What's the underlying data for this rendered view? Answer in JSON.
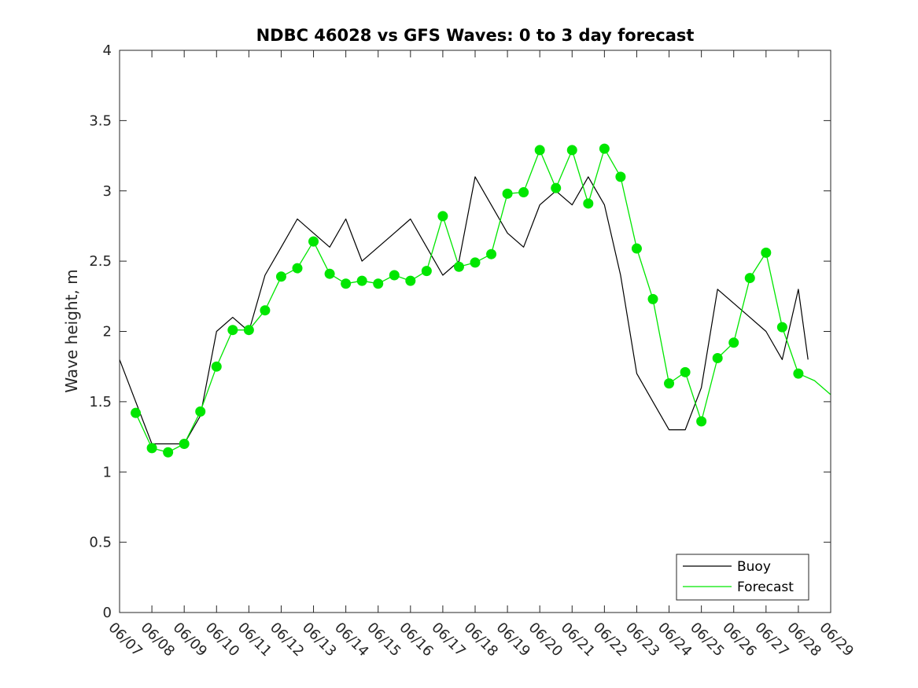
{
  "chart_data": {
    "type": "line",
    "title": "NDBC 46028 vs GFS Waves: 0 to 3 day forecast",
    "ylabel": "Wave height, m",
    "xlabel": "",
    "ylim": [
      0,
      4
    ],
    "yticks": [
      "0",
      "0.5",
      "1",
      "1.5",
      "2",
      "2.5",
      "3",
      "3.5",
      "4"
    ],
    "xlim_days": [
      0,
      22
    ],
    "xtick_labels": [
      "06/07",
      "06/08",
      "06/09",
      "06/10",
      "06/11",
      "06/12",
      "06/13",
      "06/14",
      "06/15",
      "06/16",
      "06/17",
      "06/18",
      "06/19",
      "06/20",
      "06/21",
      "06/22",
      "06/23",
      "06/24",
      "06/25",
      "06/26",
      "06/27",
      "06/28",
      "06/29"
    ],
    "grid": false,
    "legend": {
      "location": "bottom-right",
      "entries": [
        {
          "label": "Buoy",
          "color": "#000000"
        },
        {
          "label": "Forecast",
          "color": "#00e600"
        }
      ]
    },
    "series": [
      {
        "name": "Buoy",
        "color": "#000000",
        "x": [
          0,
          0.5,
          1,
          1.5,
          2,
          2.5,
          3,
          3.5,
          4,
          4.5,
          5,
          5.5,
          6,
          6.5,
          7,
          7.5,
          8,
          8.5,
          9,
          9.5,
          10,
          10.5,
          11,
          11.5,
          12,
          12.5,
          13,
          13.5,
          14,
          14.5,
          15,
          15.5,
          16,
          16.5,
          17,
          17.5,
          18,
          18.5,
          19,
          19.5,
          20,
          20.5,
          21,
          21.3
        ],
        "y": [
          1.8,
          1.5,
          1.2,
          1.2,
          1.2,
          1.4,
          2.0,
          2.1,
          2.0,
          2.4,
          2.6,
          2.8,
          2.7,
          2.6,
          2.8,
          2.5,
          2.6,
          2.7,
          2.8,
          2.6,
          2.4,
          2.5,
          3.1,
          2.9,
          2.7,
          2.6,
          2.9,
          3.0,
          2.9,
          3.1,
          2.9,
          2.4,
          1.7,
          1.5,
          1.3,
          1.3,
          1.6,
          2.3,
          2.2,
          2.1,
          2.0,
          1.8,
          2.3,
          1.8
        ]
      },
      {
        "name": "Forecast",
        "color": "#00e600",
        "x": [
          0.5,
          1,
          1.5,
          2,
          2.5,
          3,
          3.5,
          4,
          4.5,
          5,
          5.5,
          6,
          6.5,
          7,
          7.5,
          8,
          8.5,
          9,
          9.5,
          10,
          10.5,
          11,
          11.5,
          12,
          12.5,
          13,
          13.5,
          14,
          14.5,
          15,
          15.5,
          16,
          16.5,
          17,
          17.5,
          18,
          18.5,
          19,
          19.5,
          20,
          20.5,
          21,
          21.5,
          22
        ],
        "y": [
          1.42,
          1.17,
          1.14,
          1.2,
          1.43,
          1.75,
          2.01,
          2.01,
          2.15,
          2.39,
          2.45,
          2.64,
          2.41,
          2.34,
          2.36,
          2.34,
          2.4,
          2.36,
          2.43,
          2.82,
          2.46,
          2.49,
          2.55,
          2.98,
          2.99,
          3.29,
          3.02,
          3.29,
          2.91,
          3.3,
          3.1,
          2.59,
          2.23,
          1.63,
          1.71,
          1.36,
          1.81,
          1.92,
          2.38,
          2.56,
          2.03,
          1.7,
          1.65,
          1.55
        ]
      }
    ],
    "markers": {
      "series": "Forecast",
      "x": [
        0.5,
        1,
        1.5,
        2,
        2.5,
        3,
        3.5,
        4,
        4.5,
        5,
        5.5,
        6,
        6.5,
        7,
        7.5,
        8,
        8.5,
        9,
        9.5,
        10,
        10.5,
        11,
        11.5,
        12,
        12.5,
        13,
        13.5,
        14,
        14.5,
        15,
        15.5,
        16,
        16.5,
        17,
        17.5,
        18,
        18.5,
        19,
        19.5,
        20,
        20.5,
        21
      ],
      "y": [
        1.42,
        1.17,
        1.14,
        1.2,
        1.43,
        1.75,
        2.01,
        2.01,
        2.15,
        2.39,
        2.45,
        2.64,
        2.41,
        2.34,
        2.36,
        2.34,
        2.4,
        2.36,
        2.43,
        2.82,
        2.46,
        2.49,
        2.55,
        2.98,
        2.99,
        3.29,
        3.02,
        3.29,
        2.91,
        3.3,
        3.1,
        2.59,
        2.23,
        1.63,
        1.71,
        1.36,
        1.81,
        1.92,
        2.38,
        2.56,
        2.03,
        1.7
      ]
    }
  }
}
